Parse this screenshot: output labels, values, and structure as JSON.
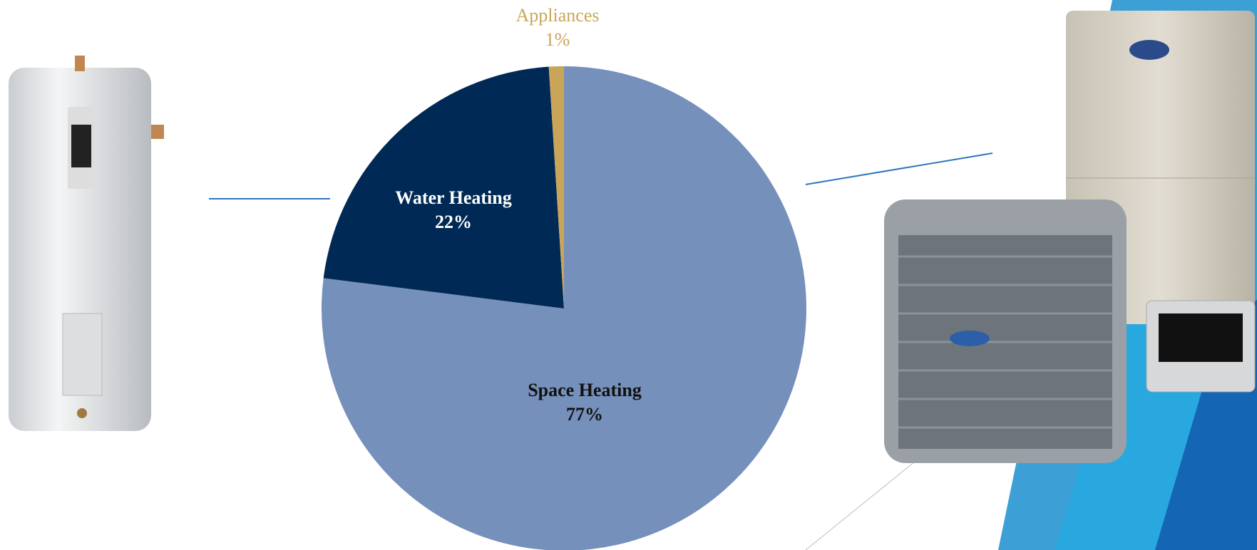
{
  "chart_data": {
    "type": "pie",
    "categories": [
      "Space Heating",
      "Water Heating",
      "Appliances"
    ],
    "values": [
      77,
      22,
      1
    ],
    "value_labels": [
      "77%",
      "22%",
      "1%"
    ],
    "colors": [
      "#7590bb",
      "#002a55",
      "#c9a55a"
    ]
  }
}
